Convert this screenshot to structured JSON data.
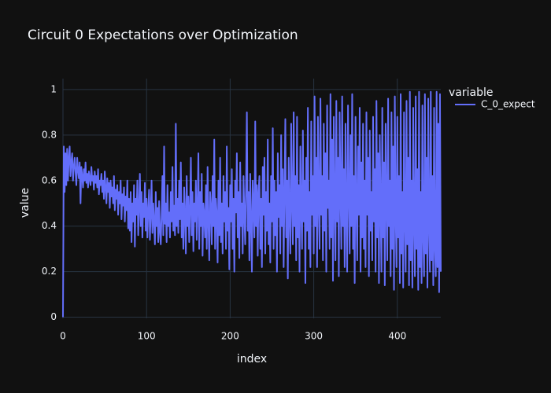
{
  "chart_data": {
    "type": "line",
    "title": "Circuit 0 Expectations over Optimization",
    "x_label": "index",
    "y_label": "value",
    "legend_title": "variable",
    "series": [
      {
        "name": "C_0_expect",
        "color": "#636efa",
        "values": [
          0,
          0.75,
          0.55,
          0.72,
          0.58,
          0.74,
          0.6,
          0.7,
          0.75,
          0.62,
          0.68,
          0.72,
          0.6,
          0.66,
          0.7,
          0.64,
          0.58,
          0.7,
          0.65,
          0.61,
          0.68,
          0.5,
          0.66,
          0.62,
          0.57,
          0.65,
          0.6,
          0.68,
          0.59,
          0.63,
          0.57,
          0.64,
          0.61,
          0.58,
          0.66,
          0.6,
          0.62,
          0.56,
          0.64,
          0.59,
          0.62,
          0.57,
          0.65,
          0.54,
          0.6,
          0.58,
          0.63,
          0.55,
          0.6,
          0.52,
          0.64,
          0.57,
          0.5,
          0.61,
          0.55,
          0.59,
          0.48,
          0.6,
          0.53,
          0.57,
          0.5,
          0.62,
          0.47,
          0.56,
          0.52,
          0.58,
          0.45,
          0.55,
          0.5,
          0.6,
          0.43,
          0.54,
          0.49,
          0.57,
          0.42,
          0.53,
          0.47,
          0.6,
          0.39,
          0.52,
          0.38,
          0.55,
          0.33,
          0.5,
          0.42,
          0.58,
          0.31,
          0.52,
          0.45,
          0.6,
          0.36,
          0.48,
          0.63,
          0.4,
          0.55,
          0.35,
          0.5,
          0.44,
          0.59,
          0.38,
          0.52,
          0.35,
          0.47,
          0.56,
          0.34,
          0.45,
          0.6,
          0.37,
          0.5,
          0.42,
          0.32,
          0.55,
          0.4,
          0.48,
          0.33,
          0.51,
          0.38,
          0.32,
          0.45,
          0.62,
          0.36,
          0.75,
          0.41,
          0.5,
          0.33,
          0.58,
          0.4,
          0.46,
          0.35,
          0.55,
          0.42,
          0.66,
          0.38,
          0.49,
          0.36,
          0.85,
          0.4,
          0.52,
          0.37,
          0.6,
          0.43,
          0.68,
          0.35,
          0.5,
          0.3,
          0.57,
          0.45,
          0.28,
          0.62,
          0.4,
          0.53,
          0.33,
          0.47,
          0.7,
          0.36,
          0.55,
          0.29,
          0.5,
          0.42,
          0.6,
          0.34,
          0.48,
          0.72,
          0.3,
          0.55,
          0.4,
          0.63,
          0.27,
          0.5,
          0.45,
          0.35,
          0.58,
          0.3,
          0.66,
          0.42,
          0.25,
          0.55,
          0.48,
          0.32,
          0.62,
          0.4,
          0.78,
          0.3,
          0.52,
          0.45,
          0.24,
          0.6,
          0.36,
          0.7,
          0.33,
          0.5,
          0.28,
          0.62,
          0.42,
          0.55,
          0.3,
          0.75,
          0.38,
          0.48,
          0.21,
          0.58,
          0.42,
          0.65,
          0.3,
          0.52,
          0.2,
          0.6,
          0.46,
          0.72,
          0.35,
          0.55,
          0.26,
          0.68,
          0.4,
          0.5,
          0.28,
          0.62,
          0.45,
          0.32,
          0.58,
          0.9,
          0.38,
          0.55,
          0.25,
          0.63,
          0.42,
          0.2,
          0.6,
          0.48,
          0.35,
          0.86,
          0.4,
          0.58,
          0.27,
          0.55,
          0.62,
          0.3,
          0.52,
          0.22,
          0.66,
          0.45,
          0.7,
          0.28,
          0.55,
          0.38,
          0.78,
          0.32,
          0.5,
          0.24,
          0.62,
          0.42,
          0.83,
          0.3,
          0.6,
          0.36,
          0.55,
          0.2,
          0.72,
          0.44,
          0.58,
          0.28,
          0.8,
          0.4,
          0.65,
          0.22,
          0.55,
          0.87,
          0.35,
          0.6,
          0.17,
          0.7,
          0.45,
          0.28,
          0.85,
          0.5,
          0.32,
          0.9,
          0.4,
          0.62,
          0.25,
          0.88,
          0.35,
          0.58,
          0.2,
          0.75,
          0.48,
          0.3,
          0.82,
          0.42,
          0.6,
          0.15,
          0.7,
          0.38,
          0.92,
          0.3,
          0.55,
          0.22,
          0.86,
          0.45,
          0.62,
          0.28,
          0.97,
          0.4,
          0.7,
          0.22,
          0.88,
          0.5,
          0.3,
          0.96,
          0.45,
          0.62,
          0.25,
          0.85,
          0.38,
          0.72,
          0.2,
          0.93,
          0.48,
          0.6,
          0.3,
          0.98,
          0.35,
          0.78,
          0.16,
          0.88,
          0.5,
          0.25,
          0.95,
          0.42,
          0.7,
          0.18,
          0.9,
          0.55,
          0.3,
          0.97,
          0.4,
          0.65,
          0.22,
          0.85,
          0.45,
          0.2,
          0.93,
          0.55,
          0.28,
          0.8,
          0.4,
          0.98,
          0.3,
          0.62,
          0.15,
          0.88,
          0.5,
          0.25,
          0.75,
          0.45,
          0.92,
          0.2,
          0.68,
          0.35,
          0.85,
          0.3,
          0.6,
          0.22,
          0.9,
          0.45,
          0.7,
          0.18,
          0.82,
          0.38,
          0.55,
          0.25,
          0.88,
          0.42,
          0.65,
          0.2,
          0.95,
          0.35,
          0.72,
          0.15,
          0.8,
          0.48,
          0.2,
          0.92,
          0.35,
          0.68,
          0.14,
          0.85,
          0.5,
          0.25,
          0.96,
          0.4,
          0.6,
          0.18,
          0.9,
          0.3,
          0.75,
          0.12,
          0.97,
          0.45,
          0.22,
          0.88,
          0.35,
          0.62,
          0.15,
          0.98,
          0.28,
          0.55,
          0.13,
          0.9,
          0.42,
          0.2,
          0.95,
          0.32,
          0.7,
          0.14,
          0.99,
          0.25,
          0.6,
          0.13,
          0.92,
          0.4,
          0.18,
          0.97,
          0.3,
          0.65,
          0.12,
          0.99,
          0.22,
          0.55,
          0.15,
          0.93,
          0.35,
          0.18,
          0.98,
          0.28,
          0.7,
          0.13,
          0.96,
          0.4,
          0.2,
          0.99,
          0.25,
          0.62,
          0.14,
          0.92,
          0.3,
          0.18,
          0.99,
          0.22,
          0.85,
          0.11,
          0.98,
          0.2
        ]
      }
    ],
    "xlim": [
      0,
      452
    ],
    "xticks": [
      0,
      100,
      200,
      300,
      400
    ],
    "ylim": [
      -0.005,
      1.048
    ],
    "yticks": [
      0,
      0.2,
      0.4,
      0.6,
      0.8,
      1
    ],
    "grid": true,
    "legend_position": "right"
  }
}
